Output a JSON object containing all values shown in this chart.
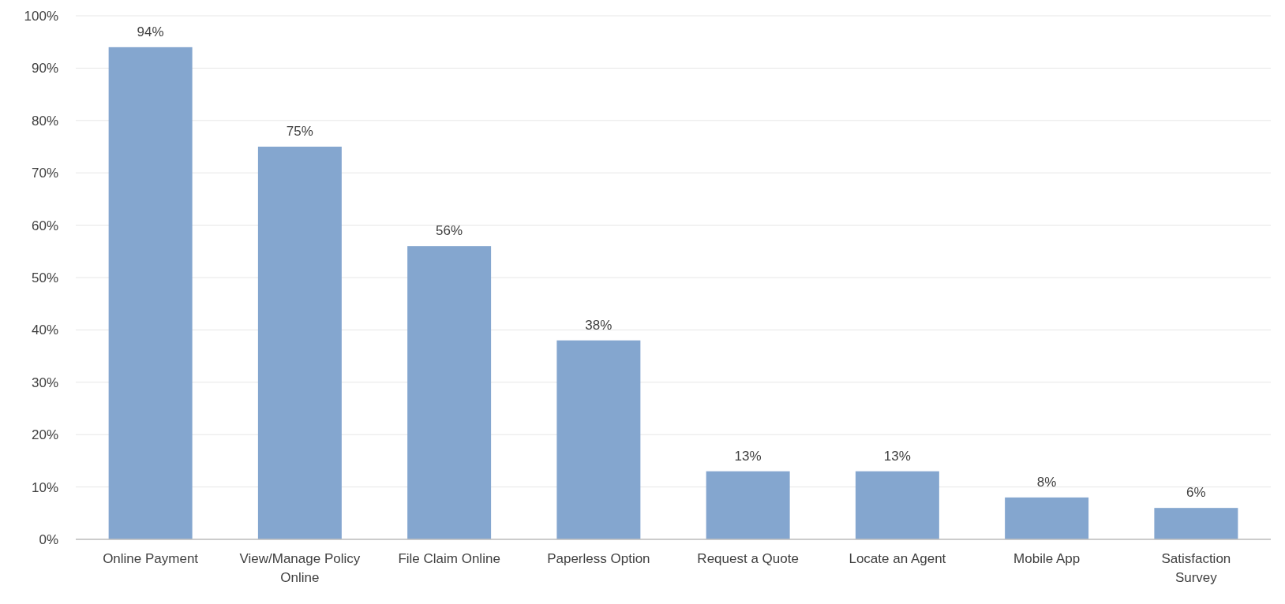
{
  "chart_data": {
    "type": "bar",
    "categories": [
      "Online Payment",
      "View/Manage Policy Online",
      "File Claim Online",
      "Paperless Option",
      "Request a Quote",
      "Locate an Agent",
      "Mobile App",
      "Satisfaction Survey"
    ],
    "values": [
      94,
      75,
      56,
      38,
      13,
      13,
      8,
      6
    ],
    "value_labels": [
      "94%",
      "75%",
      "56%",
      "38%",
      "13%",
      "13%",
      "8%",
      "6%"
    ],
    "color": "#84a6cf",
    "ylim": [
      0,
      100
    ],
    "yticks": [
      {
        "value": 0,
        "label": "0%"
      },
      {
        "value": 10,
        "label": "10%"
      },
      {
        "value": 20,
        "label": "20%"
      },
      {
        "value": 30,
        "label": "30%"
      },
      {
        "value": 40,
        "label": "40%"
      },
      {
        "value": 50,
        "label": "50%"
      },
      {
        "value": 60,
        "label": "60%"
      },
      {
        "value": 70,
        "label": "70%"
      },
      {
        "value": 80,
        "label": "80%"
      },
      {
        "value": 90,
        "label": "90%"
      },
      {
        "value": 100,
        "label": "100%"
      }
    ],
    "grid": "y"
  }
}
